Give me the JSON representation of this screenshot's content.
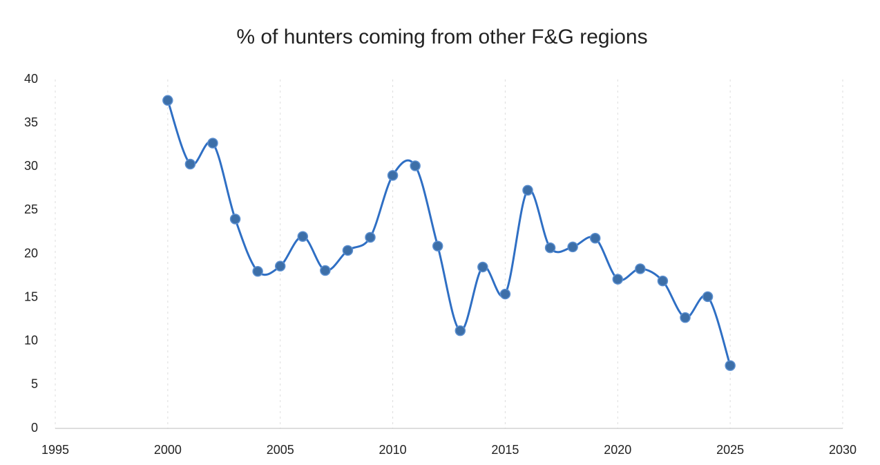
{
  "chart_data": {
    "type": "line",
    "title": "% of hunters coming from other F&G regions",
    "x": [
      2000,
      2001,
      2002,
      2003,
      2004,
      2005,
      2006,
      2007,
      2008,
      2009,
      2010,
      2011,
      2012,
      2013,
      2014,
      2015,
      2016,
      2017,
      2018,
      2019,
      2020,
      2021,
      2022,
      2023,
      2024,
      2025
    ],
    "values": [
      37.6,
      30.3,
      32.7,
      24.0,
      18.0,
      18.6,
      22.0,
      18.1,
      20.4,
      21.9,
      29.0,
      30.1,
      20.9,
      11.2,
      18.5,
      15.4,
      27.3,
      20.7,
      20.8,
      21.8,
      17.1,
      18.3,
      16.9,
      12.7,
      15.1,
      7.2
    ],
    "color": "#2f6fc4",
    "xlim": [
      1995,
      2030
    ],
    "xticks": [
      1995,
      2000,
      2005,
      2010,
      2015,
      2020,
      2025,
      2030
    ],
    "ylim": [
      0,
      40
    ],
    "yticks": [
      0,
      5,
      10,
      15,
      20,
      25,
      30,
      35,
      40
    ],
    "grid": true,
    "smooth": true
  }
}
